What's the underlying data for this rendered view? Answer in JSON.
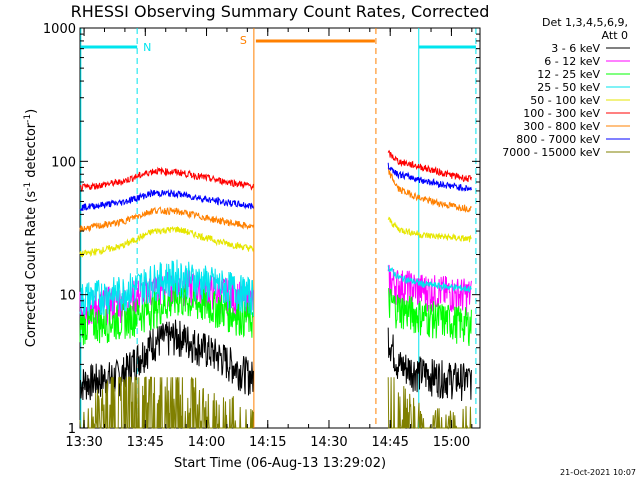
{
  "chart_data": {
    "type": "line",
    "title": "RHESSI Observing Summary Count Rates, Corrected",
    "xlabel": "Start Time (06-Aug-13 13:29:02)",
    "ylabel_main": "Corrected Count Rate (s",
    "ylabel_sup1": "-1",
    "ylabel_mid": " detector",
    "ylabel_sup2": "-1",
    "ylabel_end": ")",
    "y_scale": "log",
    "ylim": [
      1,
      1000
    ],
    "xlim_minutes": [
      0,
      98
    ],
    "x_tick_labels": [
      "13:30",
      "13:45",
      "14:00",
      "14:15",
      "14:30",
      "14:45",
      "15:00"
    ],
    "y_tick_labels": [
      "1",
      "10",
      "100",
      "1000"
    ],
    "legend_header": [
      "Det 1,3,4,5,6,9,",
      "Att 0"
    ],
    "legend_position": "right",
    "footer_date": "21-Oct-2021 10:07",
    "flags": {
      "night_label": "N",
      "saa_label": "S",
      "night_color": "#00e5ee",
      "saa_color": "#ff8000"
    },
    "gaps_minutes": [
      [
        42.6,
        75
      ]
    ],
    "series": [
      {
        "name": "3 - 6 keV",
        "color": "#000000",
        "seg1": [
          2.2,
          2.5,
          4.5,
          5.0,
          3.5,
          2.4
        ],
        "seg2": [
          5.0,
          3.0,
          2.6,
          2.4,
          2.3
        ]
      },
      {
        "name": "6 - 12 keV",
        "color": "#ff00ff",
        "seg1": [
          8.0,
          9.0,
          11.0,
          12.0,
          10.5,
          9.0
        ],
        "seg2": [
          13.0,
          12.0,
          11.0,
          10.5,
          10.0
        ]
      },
      {
        "name": "12 - 25 keV",
        "color": "#00ff00",
        "seg1": [
          6.0,
          6.5,
          8.0,
          9.5,
          8.0,
          6.5
        ],
        "seg2": [
          9.0,
          8.0,
          7.0,
          6.5,
          6.0
        ]
      },
      {
        "name": "25 - 50 keV",
        "color": "#00e5ee",
        "seg1": [
          9.5,
          10.5,
          13.0,
          14.0,
          12.0,
          10.0
        ],
        "seg2": [
          16.0,
          13.5,
          12.0,
          11.5,
          11.0
        ]
      },
      {
        "name": "50 - 100 keV",
        "color": "#e6e600",
        "seg1": [
          20.0,
          23.0,
          30.0,
          31.0,
          25.0,
          22.0
        ],
        "seg2": [
          37.0,
          31.0,
          28.0,
          27.0,
          26.0
        ]
      },
      {
        "name": "100 - 300 keV",
        "color": "#ff0000",
        "seg1": [
          63.0,
          70.0,
          85.0,
          83.0,
          72.0,
          65.0
        ],
        "seg2": [
          115.0,
          100.0,
          90.0,
          80.0,
          73.0
        ]
      },
      {
        "name": "300 - 800 keV",
        "color": "#ff8000",
        "seg1": [
          31.0,
          35.0,
          43.0,
          42.0,
          36.0,
          32.0
        ],
        "seg2": [
          85.0,
          62.0,
          52.0,
          47.0,
          44.0
        ]
      },
      {
        "name": "800 - 7000 keV",
        "color": "#0000ff",
        "seg1": [
          45.0,
          49.0,
          58.0,
          57.0,
          50.0,
          46.0
        ],
        "seg2": [
          92.0,
          80.0,
          72.0,
          66.0,
          62.0
        ]
      },
      {
        "name": "7000 - 15000 keV",
        "color": "#808000",
        "seg1": [
          1.0,
          2.3,
          2.3,
          2.0,
          1.3,
          1.0
        ],
        "seg2": [
          2.5,
          1.6,
          1.0,
          1.0,
          1.0
        ]
      }
    ],
    "segment_minutes": {
      "seg1": [
        0,
        10,
        18,
        24,
        34,
        42.5
      ],
      "seg2": [
        75.5,
        78,
        84,
        90,
        96
      ]
    }
  }
}
